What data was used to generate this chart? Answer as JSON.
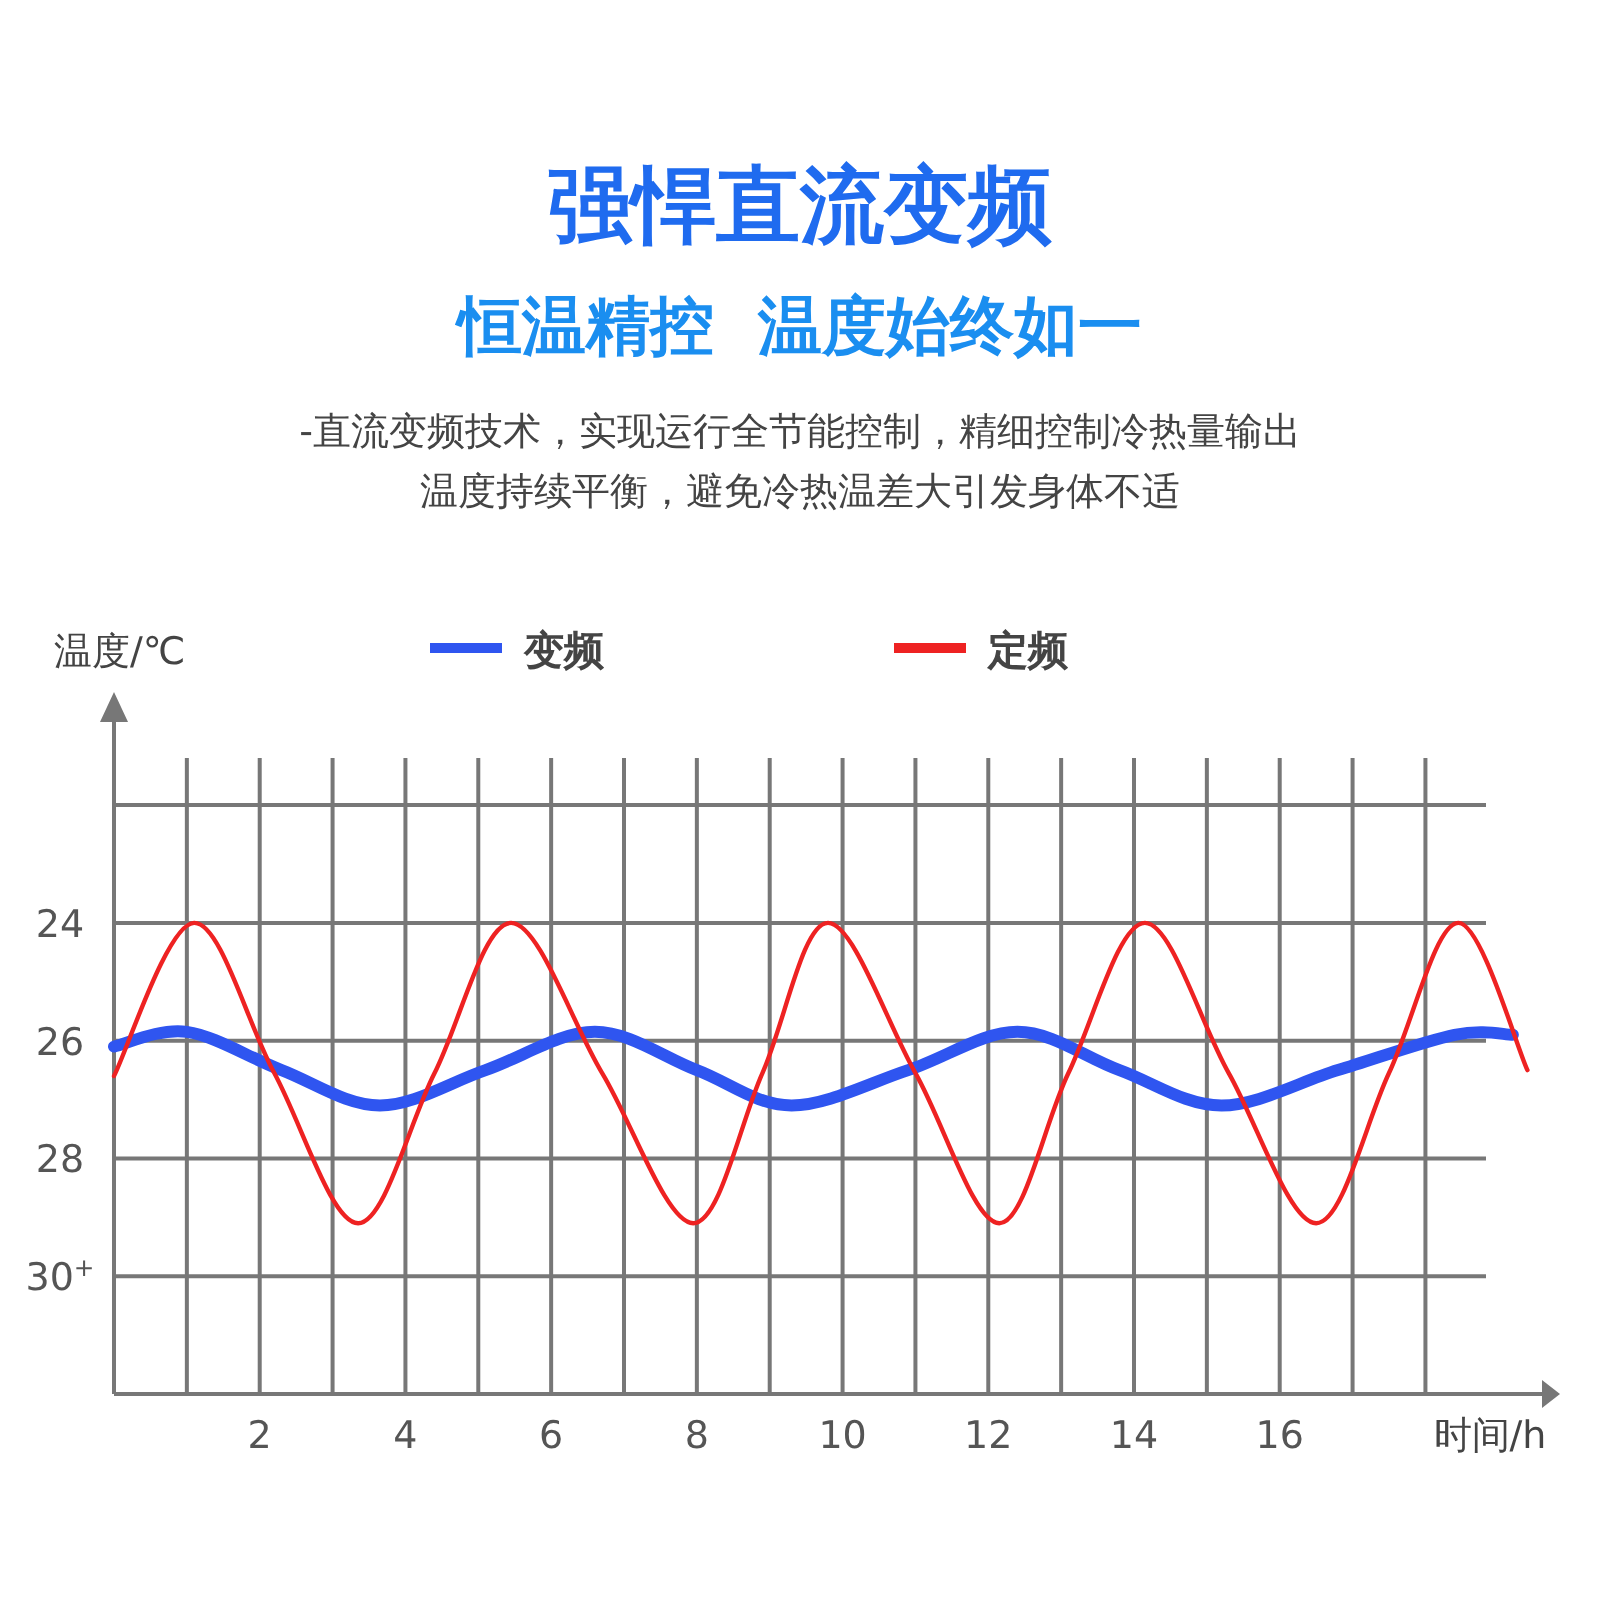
{
  "chart_data": {
    "type": "line",
    "title": "强悍直流变频",
    "subtitle": "恒温精控  温度始终如一",
    "annotations": [
      "-直流变频技术，实现运行全节能控制，精细控制冷热量输出",
      "温度持续平衡，避免冷热温差大引发身体不适"
    ],
    "xlabel": "时间/h",
    "ylabel": "温度/℃",
    "xlim": [
      0,
      19.6
    ],
    "ylim": [
      32,
      21.2
    ],
    "xticks": [
      {
        "value": 1,
        "label": null
      },
      2,
      {
        "value": 3,
        "label": null
      },
      4,
      {
        "value": 5,
        "label": null
      },
      6,
      {
        "value": 7,
        "label": null
      },
      8,
      {
        "value": 9,
        "label": null
      },
      10,
      {
        "value": 11,
        "label": null
      },
      12,
      {
        "value": 13,
        "label": null
      },
      14,
      {
        "value": 15,
        "label": null
      },
      16,
      {
        "value": 17,
        "label": null
      },
      {
        "value": 18,
        "label": null
      }
    ],
    "yticks": [
      {
        "value": 22,
        "label": null
      },
      24,
      26,
      28,
      {
        "value": 30,
        "label": "30$^{+}$"
      }
    ],
    "grid": true,
    "legend": "top",
    "series": [
      {
        "name": "变频",
        "color": "#2f55f0",
        "x": [
          0,
          1.0,
          2.3,
          3.65,
          5.1,
          6.6,
          8.0,
          9.3,
          10.9,
          12.4,
          13.8,
          15.2,
          16.8,
          18.4,
          19.2
        ],
        "values": [
          26.1,
          25.85,
          26.5,
          27.1,
          26.5,
          25.85,
          26.5,
          27.1,
          26.5,
          25.85,
          26.5,
          27.1,
          26.5,
          25.9,
          25.9
        ]
      },
      {
        "name": "定频",
        "color": "#ee2222",
        "x": [
          0,
          1.1,
          2.2,
          3.35,
          4.4,
          5.45,
          6.7,
          7.95,
          8.9,
          9.8,
          11.0,
          12.15,
          13.1,
          14.15,
          15.3,
          16.5,
          17.5,
          18.45,
          19.4
        ],
        "values": [
          26.6,
          24,
          26.55,
          29.1,
          26.55,
          24,
          26.55,
          29.1,
          26.55,
          24,
          26.55,
          29.1,
          26.55,
          24,
          26.55,
          29.1,
          26.55,
          24,
          26.5
        ]
      }
    ]
  }
}
